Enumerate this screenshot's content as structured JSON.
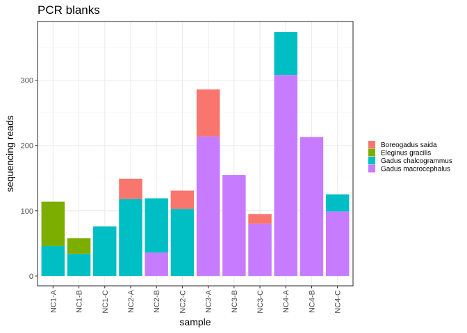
{
  "chart_data": {
    "type": "bar",
    "stacked": true,
    "title": "PCR blanks",
    "xlabel": "sample",
    "ylabel": "sequencing reads",
    "categories": [
      "NC1-A",
      "NC1-B",
      "NC1-C",
      "NC2-A",
      "NC2-B",
      "NC2-C",
      "NC3-A",
      "NC3-B",
      "NC3-C",
      "NC4-A",
      "NC4-B",
      "NC4-C"
    ],
    "ylim": [
      -15,
      390
    ],
    "yticks": [
      0,
      100,
      200,
      300
    ],
    "grid": true,
    "legend_position": "right",
    "series": [
      {
        "name": "Gadus macrocephalus",
        "color": "#C77CFF",
        "values": [
          0,
          0,
          0,
          0,
          36,
          0,
          214,
          155,
          80,
          308,
          213,
          99
        ]
      },
      {
        "name": "Gadus chalcogrammus",
        "color": "#00BFC4",
        "values": [
          46,
          34,
          76,
          118,
          83,
          103,
          0,
          0,
          0,
          66,
          0,
          26
        ]
      },
      {
        "name": "Eleginus gracilis",
        "color": "#7CAE00",
        "values": [
          68,
          24,
          0,
          0,
          0,
          0,
          0,
          0,
          0,
          0,
          0,
          0
        ]
      },
      {
        "name": "Boreogadus saida",
        "color": "#F8766D",
        "values": [
          0,
          0,
          0,
          31,
          0,
          28,
          72,
          0,
          15,
          0,
          0,
          0
        ]
      }
    ],
    "legend_order": [
      "Boreogadus saida",
      "Eleginus gracilis",
      "Gadus chalcogrammus",
      "Gadus macrocephalus"
    ]
  }
}
